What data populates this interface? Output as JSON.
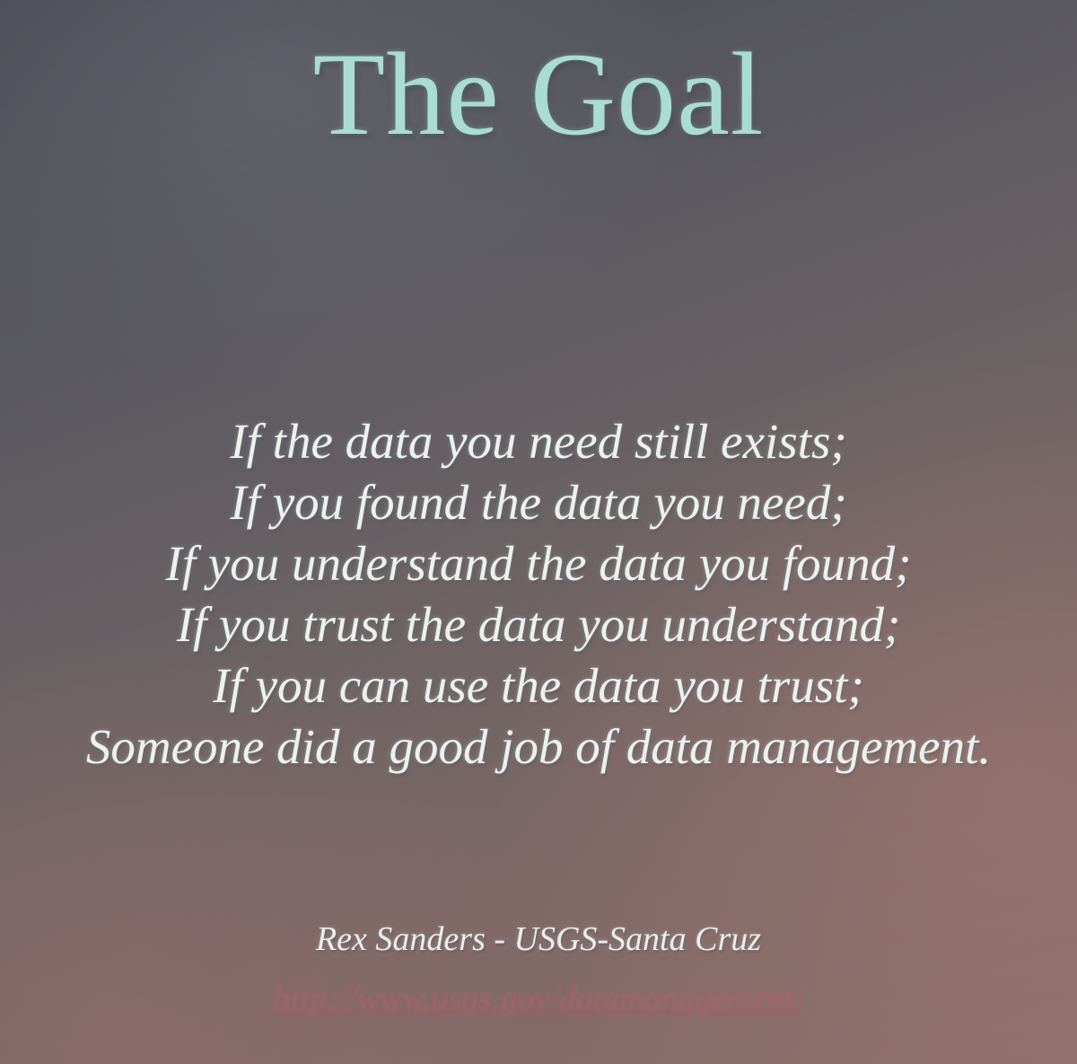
{
  "slide": {
    "title": "The Goal",
    "quote_lines": [
      "If the data you need still exists;",
      "If you found the data you need;",
      "If you understand the data you found;",
      "If you trust the data you understand;",
      "If you can use the data you trust;",
      "Someone did a good job of data management."
    ],
    "attribution": "Rex Sanders - USGS-Santa Cruz",
    "link": "http://www.usgs.gov/datamanagement/"
  },
  "colors": {
    "title": "#a9dcd3",
    "body_text": "#eaf2ee",
    "link": "#b2606a",
    "background": "#6b6264"
  }
}
